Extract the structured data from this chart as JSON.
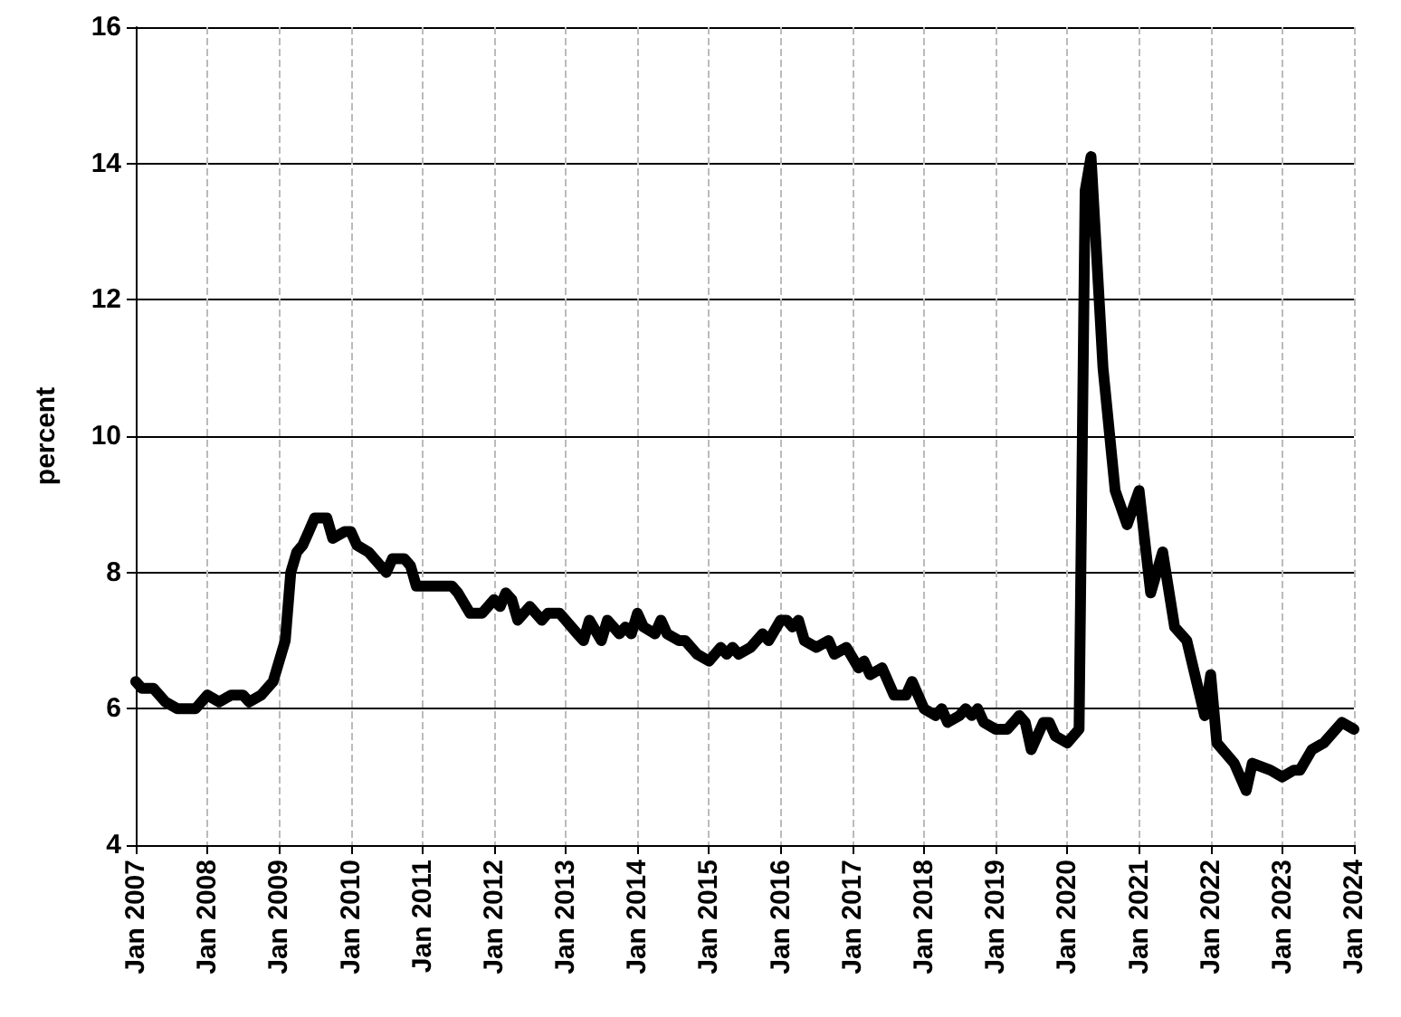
{
  "chart_data": {
    "type": "line",
    "ylabel": "percent",
    "ylim": [
      4,
      16
    ],
    "yticks": [
      4,
      6,
      8,
      10,
      12,
      14,
      16
    ],
    "xlim": [
      "2007-01",
      "2024-01"
    ],
    "xticks": [
      {
        "value": "2007-01",
        "label": "Jan 2007"
      },
      {
        "value": "2008-01",
        "label": "Jan 2008"
      },
      {
        "value": "2009-01",
        "label": "Jan 2009"
      },
      {
        "value": "2010-01",
        "label": "Jan 2010"
      },
      {
        "value": "2011-01",
        "label": "Jan 2011"
      },
      {
        "value": "2012-01",
        "label": "Jan 2012"
      },
      {
        "value": "2013-01",
        "label": "Jan 2013"
      },
      {
        "value": "2014-01",
        "label": "Jan 2014"
      },
      {
        "value": "2015-01",
        "label": "Jan 2015"
      },
      {
        "value": "2016-01",
        "label": "Jan 2016"
      },
      {
        "value": "2017-01",
        "label": "Jan 2017"
      },
      {
        "value": "2018-01",
        "label": "Jan 2018"
      },
      {
        "value": "2019-01",
        "label": "Jan 2019"
      },
      {
        "value": "2020-01",
        "label": "Jan 2020"
      },
      {
        "value": "2021-01",
        "label": "Jan 2021"
      },
      {
        "value": "2022-01",
        "label": "Jan 2022"
      },
      {
        "value": "2023-01",
        "label": "Jan 2023"
      },
      {
        "value": "2024-01",
        "label": "Jan 2024"
      }
    ],
    "grid": true,
    "marker": "none",
    "line_style": "solid",
    "series": [
      {
        "color": "#000000",
        "x": [
          "2007-01",
          "2007-02",
          "2007-04",
          "2007-06",
          "2007-08",
          "2007-11",
          "2008-01",
          "2008-03",
          "2008-05",
          "2008-07",
          "2008-08",
          "2008-10",
          "2008-12",
          "2009-02",
          "2009-03",
          "2009-04",
          "2009-05",
          "2009-06",
          "2009-07",
          "2009-09",
          "2009-10",
          "2009-12",
          "2010-01",
          "2010-02",
          "2010-04",
          "2010-06",
          "2010-07",
          "2010-08",
          "2010-10",
          "2010-11",
          "2010-12",
          "2011-06",
          "2011-07",
          "2011-09",
          "2011-11",
          "2012-01",
          "2012-02",
          "2012-03",
          "2012-04",
          "2012-05",
          "2012-07",
          "2012-09",
          "2012-10",
          "2012-12",
          "2013-03",
          "2013-04",
          "2013-05",
          "2013-07",
          "2013-08",
          "2013-10",
          "2013-11",
          "2013-12",
          "2014-01",
          "2014-02",
          "2014-04",
          "2014-05",
          "2014-06",
          "2014-08",
          "2014-09",
          "2014-11",
          "2015-01",
          "2015-03",
          "2015-04",
          "2015-05",
          "2015-06",
          "2015-08",
          "2015-10",
          "2015-11",
          "2016-01",
          "2016-02",
          "2016-03",
          "2016-04",
          "2016-05",
          "2016-07",
          "2016-09",
          "2016-10",
          "2016-12",
          "2017-02",
          "2017-03",
          "2017-04",
          "2017-06",
          "2017-08",
          "2017-10",
          "2017-11",
          "2018-01",
          "2018-03",
          "2018-04",
          "2018-05",
          "2018-07",
          "2018-08",
          "2018-09",
          "2018-10",
          "2018-11",
          "2019-01",
          "2019-03",
          "2019-04",
          "2019-05",
          "2019-06",
          "2019-07",
          "2019-09",
          "2019-10",
          "2019-11",
          "2020-01",
          "2020-03",
          "2020-04",
          "2020-05",
          "2020-07",
          "2020-09",
          "2020-11",
          "2021-01",
          "2021-03",
          "2021-05",
          "2021-07",
          "2021-09",
          "2021-12",
          "2022-01",
          "2022-02",
          "2022-05",
          "2022-07",
          "2022-08",
          "2022-11",
          "2023-01",
          "2023-03",
          "2023-04",
          "2023-06",
          "2023-08",
          "2023-11",
          "2024-01"
        ],
        "values": [
          6.4,
          6.3,
          6.3,
          6.1,
          6.0,
          6.0,
          6.2,
          6.1,
          6.2,
          6.2,
          6.1,
          6.2,
          6.4,
          7.0,
          8.0,
          8.3,
          8.4,
          8.6,
          8.8,
          8.8,
          8.5,
          8.6,
          8.6,
          8.4,
          8.3,
          8.1,
          8.0,
          8.2,
          8.2,
          8.1,
          7.8,
          7.8,
          7.7,
          7.4,
          7.4,
          7.6,
          7.5,
          7.7,
          7.6,
          7.3,
          7.5,
          7.3,
          7.4,
          7.4,
          7.1,
          7.0,
          7.3,
          7.0,
          7.3,
          7.1,
          7.2,
          7.1,
          7.4,
          7.2,
          7.1,
          7.3,
          7.1,
          7.0,
          7.0,
          6.8,
          6.7,
          6.9,
          6.8,
          6.9,
          6.8,
          6.9,
          7.1,
          7.0,
          7.3,
          7.3,
          7.2,
          7.3,
          7.0,
          6.9,
          7.0,
          6.8,
          6.9,
          6.6,
          6.7,
          6.5,
          6.6,
          6.2,
          6.2,
          6.4,
          6.0,
          5.9,
          6.0,
          5.8,
          5.9,
          6.0,
          5.9,
          6.0,
          5.8,
          5.7,
          5.7,
          5.8,
          5.9,
          5.8,
          5.4,
          5.8,
          5.8,
          5.6,
          5.5,
          5.7,
          13.6,
          14.1,
          11.0,
          9.2,
          8.7,
          9.2,
          7.7,
          8.3,
          7.2,
          7.0,
          5.9,
          6.5,
          5.5,
          5.2,
          4.8,
          5.2,
          5.1,
          5.0,
          5.1,
          5.1,
          5.4,
          5.5,
          5.8,
          5.7
        ]
      }
    ]
  }
}
